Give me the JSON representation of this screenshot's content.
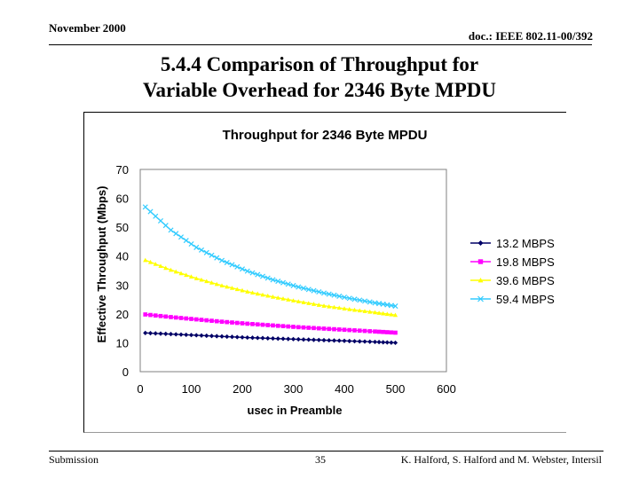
{
  "header": {
    "date": "November 2000",
    "doc": "doc.: IEEE 802.11-00/392"
  },
  "slide": {
    "title_line1": "5.4.4 Comparison of Throughput for",
    "title_line2": "Variable Overhead for 2346 Byte MPDU"
  },
  "footer": {
    "left": "Submission",
    "page": "35",
    "authors": "K. Halford,  S. Halford and M. Webster, Intersil"
  },
  "chart_data": {
    "type": "line",
    "title": "Throughput for 2346 Byte MPDU",
    "xlabel": "usec in Preamble",
    "ylabel": "Effective Throughput (Mbps)",
    "xlim": [
      0,
      600
    ],
    "ylim": [
      0,
      70
    ],
    "xticks": [
      "0",
      "100",
      "200",
      "300",
      "400",
      "500",
      "600"
    ],
    "yticks": [
      "0",
      "10",
      "20",
      "30",
      "40",
      "50",
      "60",
      "70"
    ],
    "grid": false,
    "legend_position": "right",
    "x": [
      10,
      60,
      110,
      160,
      210,
      260,
      310,
      360,
      410,
      460,
      500
    ],
    "series": [
      {
        "name": "13.2 MBPS",
        "color": "#000066",
        "marker": "diamond",
        "values": [
          13.4,
          13.0,
          12.6,
          12.2,
          11.8,
          11.5,
          11.2,
          10.9,
          10.6,
          10.3,
          10.0
        ]
      },
      {
        "name": "19.8 MBPS",
        "color": "#ff00ff",
        "marker": "square",
        "values": [
          19.8,
          18.9,
          18.1,
          17.3,
          16.6,
          16.0,
          15.4,
          14.9,
          14.4,
          13.9,
          13.5
        ]
      },
      {
        "name": "39.6 MBPS",
        "color": "#ffff00",
        "marker": "triangle",
        "values": [
          38.6,
          35.2,
          32.3,
          29.8,
          27.7,
          25.9,
          24.3,
          22.8,
          21.6,
          20.5,
          19.6
        ]
      },
      {
        "name": "59.4 MBPS",
        "color": "#33ccff",
        "marker": "x",
        "values": [
          57.0,
          49.0,
          43.0,
          38.5,
          34.8,
          31.8,
          29.3,
          27.2,
          25.4,
          23.8,
          22.7
        ]
      }
    ]
  }
}
